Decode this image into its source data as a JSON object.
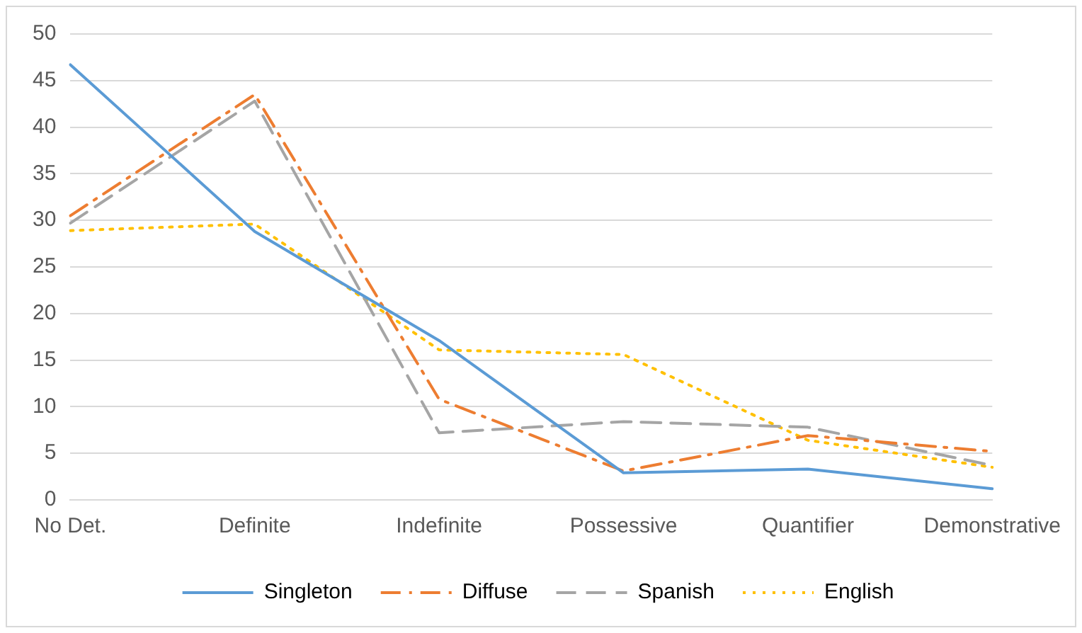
{
  "chart_data": {
    "type": "line",
    "categories": [
      "No Det.",
      "Definite",
      "Indefinite",
      "Possessive",
      "Quantifier",
      "Demonstrative"
    ],
    "series": [
      {
        "name": "Singleton",
        "color": "#5b9bd5",
        "line_style": "solid",
        "values": [
          46.7,
          28.8,
          17.1,
          2.9,
          3.3,
          1.2
        ]
      },
      {
        "name": "Diffuse",
        "color": "#ed7d31",
        "line_style": "dashdot",
        "values": [
          30.5,
          43.5,
          10.8,
          3.1,
          6.9,
          5.2
        ]
      },
      {
        "name": "Spanish",
        "color": "#a5a5a5",
        "line_style": "dashed",
        "values": [
          29.7,
          42.8,
          7.2,
          8.4,
          7.8,
          3.7
        ]
      },
      {
        "name": "English",
        "color": "#ffc000",
        "line_style": "dotted",
        "values": [
          28.9,
          29.6,
          16.1,
          15.6,
          6.4,
          3.5
        ]
      }
    ],
    "ylim": [
      0,
      50
    ],
    "yticks": [
      0,
      5,
      10,
      15,
      20,
      25,
      30,
      35,
      40,
      45,
      50
    ],
    "grid": "y",
    "legend": "bottom",
    "marker": "none"
  }
}
